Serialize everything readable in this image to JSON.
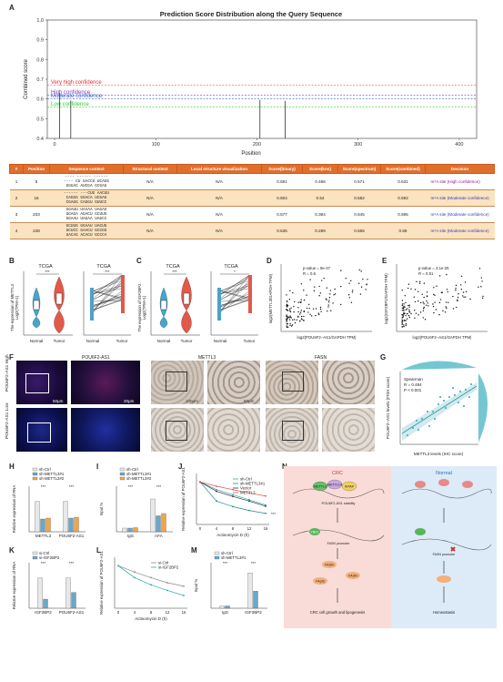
{
  "panels": {
    "A": "A",
    "B": "B",
    "C": "C",
    "D": "D",
    "E": "E",
    "F": "F",
    "G": "G",
    "H": "H",
    "I": "I",
    "J": "J",
    "K": "K",
    "L": "L",
    "M": "M",
    "N": "N"
  },
  "panelA": {
    "title": "Prediction Score Distribution along the Query Sequence",
    "ylabel": "Combined score",
    "xlabel": "Position",
    "lines": {
      "very_high": "Very high confidence",
      "high": "High confidence",
      "moderate": "Moderate confidence",
      "low": "Low confidence"
    }
  },
  "table": {
    "headers": [
      "#",
      "Position",
      "Sequence context",
      "Structural context",
      "Local structure visualization",
      "Score(binary)",
      "Score(knn)",
      "Score(spectrum)",
      "Score(combined)",
      "Decision"
    ],
    "rows": [
      {
        "n": "1",
        "pos": "5",
        "seq": [
          "----  ------  ------",
          "---- CU GACCU UCAGG",
          "GGGAC AUCGA GCGAG"
        ],
        "struct": "N/A",
        "local": "N/A",
        "binary": "0.691",
        "knn": "0.466",
        "spectrum": "0.571",
        "combined": "0.631",
        "decision": "m⁶A site (High confidence)"
      },
      {
        "n": "2",
        "pos": "16",
        "seq": [
          "------  ---CUG AACUU",
          "CAGGG GGACA UCGAG",
          "CGAGG CAGGU GUUCC"
        ],
        "struct": "N/A",
        "local": "N/A",
        "binary": "0.604",
        "knn": "0.54",
        "spectrum": "0.582",
        "combined": "0.592",
        "decision": "m⁶A site (Moderate confidence)"
      },
      {
        "n": "3",
        "pos": "203",
        "seq": [
          "GGAUU UAAAA UAGAG",
          "UGAGA AGACU GCUUG",
          "GGAAU UAGAA UAGCC"
        ],
        "struct": "N/A",
        "local": "N/A",
        "binary": "0.577",
        "knn": "0.394",
        "spectrum": "0.645",
        "combined": "0.595",
        "decision": "m⁶A site (Moderate confidence)"
      },
      {
        "n": "4",
        "pos": "228",
        "seq": [
          "GCUUG GGAAU UACUG",
          "UCUCC GAACU GCCGG",
          "UACAG ACACU GCCCA"
        ],
        "struct": "N/A",
        "local": "N/A",
        "binary": "0.635",
        "knn": "0.289",
        "spectrum": "0.565",
        "combined": "0.59",
        "decision": "m⁶A site (Moderate confidence)"
      }
    ]
  },
  "panelB": {
    "title": "TCGA",
    "ylabel": "The expression of METTL3",
    "ylabel2": "Log2(TPM+1)",
    "groups": [
      "Normal",
      "Tumor"
    ],
    "sig": "***"
  },
  "panelC": {
    "title": "TCGA",
    "ylabel": "The expression of IGF2BP2",
    "ylabel2": "Log2(TPM+1)",
    "groups": [
      "Normal",
      "Tumor"
    ],
    "sig": "***",
    "sig2": "*"
  },
  "panelD": {
    "stats": "p-value = 9e-37",
    "r": "R = 0.6",
    "xlabel": "log2(POU6F2−AS1/GAPDH TPM)",
    "ylabel": "log2(METTL3/GAPDH TPM)"
  },
  "panelE": {
    "stats": "p-value = 3.1e-25",
    "r": "R = 0.51",
    "xlabel": "log2(POU6F2−AS1/GAPDH TPM)",
    "ylabel": "log2(IGF2BP2/GAPDH TPM)"
  },
  "panelF": {
    "labels_top": [
      "POU6F2-AS1",
      "METTL3",
      "FASN"
    ],
    "row_labels": [
      "POU6F2-AS1 High",
      "POU6F2-AS1 Low"
    ],
    "scale_bars": [
      "50μm",
      "20μm",
      "100μm",
      "50μm"
    ]
  },
  "panelG": {
    "stats": [
      "Spearman",
      "R = 0.484",
      "P < 0.001"
    ],
    "xlabel": "METTL3 levels (IHC score)",
    "ylabel": "POU6F2−AS1 levels (FISH score)"
  },
  "panelH": {
    "legend": [
      "sh-Ctrl",
      "sh-METTL3#1",
      "sh-METTL3#2"
    ],
    "ylabel": "Relative expression of RNA",
    "categories": [
      "METTL3",
      "POU6F2-AS1"
    ],
    "sig": "***"
  },
  "panelI": {
    "legend": [
      "sh-Ctrl",
      "sh-METTL3#1",
      "sh-METTL3#2"
    ],
    "ylabel": "Input %",
    "categories": [
      "IgG",
      "m⁶A"
    ],
    "sig": "***"
  },
  "panelJ": {
    "legend": [
      "sh-Ctrl",
      "sh-METTL3#1",
      "Vector",
      "METTL3"
    ],
    "ylabel": "Relative expression of POU6F2-AS1",
    "xlabel": "Actinomycin D (h)",
    "sig": "***"
  },
  "panelK": {
    "legend": [
      "si-Ctrl",
      "si-IGF2BP2"
    ],
    "ylabel": "Relative expression of RNA",
    "categories": [
      "IGF2BP2",
      "POU6F2-AS1"
    ],
    "sig": "***"
  },
  "panelL": {
    "legend": [
      "si-Ctrl",
      "si-IGF2BP2"
    ],
    "ylabel": "Relative expression of POU6F2-AS1",
    "xlabel": "Actinomycin D (h)",
    "sig": "***"
  },
  "panelM": {
    "legend": [
      "sh-Ctrl",
      "sh-METTL3#1"
    ],
    "ylabel": "Input %",
    "categories": [
      "IgG",
      "IGF2BP2"
    ],
    "sig": "***"
  },
  "panelN": {
    "crc": "CRC",
    "normal": "Normal",
    "crc_outcome": "CRC cell growth and lipogenesis",
    "normal_outcome": "Homeostasis",
    "stability": "POU6F2-AS1 stability",
    "labels": [
      "METTL3",
      "METTL14",
      "WTAP",
      "YBX1",
      "FASN promoter",
      "FASN",
      "FASN",
      "FA(di)"
    ]
  },
  "chart_data": [
    {
      "type": "bar",
      "title": "Prediction Score Distribution along the Query Sequence",
      "xlabel": "Position",
      "ylabel": "Combined score",
      "x": [
        5,
        16,
        203,
        228
      ],
      "values": [
        0.631,
        0.592,
        0.595,
        0.59
      ],
      "xlim": [
        0,
        410
      ],
      "ylim": [
        0.4,
        1.0
      ],
      "thresholds": {
        "Very high confidence": 0.67,
        "High confidence": 0.62,
        "Moderate confidence": 0.6,
        "Low confidence": 0.56
      },
      "xticks": [
        0,
        100,
        200,
        300,
        400
      ],
      "yticks": [
        0.4,
        0.5,
        0.6,
        0.7,
        0.8,
        0.9,
        1.0
      ]
    },
    {
      "type": "bar",
      "panel": "H",
      "categories": [
        "METTL3",
        "POU6F2-AS1"
      ],
      "series": [
        {
          "name": "sh-Ctrl",
          "values": [
            1.0,
            1.0
          ]
        },
        {
          "name": "sh-METTL3#1",
          "values": [
            0.42,
            0.45
          ]
        },
        {
          "name": "sh-METTL3#2",
          "values": [
            0.45,
            0.48
          ]
        }
      ],
      "ylim": [
        0,
        1.5
      ],
      "colors": [
        "#e8e8e8",
        "#6aa7c9",
        "#f0a54a"
      ]
    },
    {
      "type": "bar",
      "panel": "I",
      "categories": [
        "IgG",
        "m⁶A"
      ],
      "series": [
        {
          "name": "sh-Ctrl",
          "values": [
            0.08,
            0.72
          ]
        },
        {
          "name": "sh-METTL3#1",
          "values": [
            0.08,
            0.35
          ]
        },
        {
          "name": "sh-METTL3#2",
          "values": [
            0.09,
            0.4
          ]
        }
      ],
      "ylim": [
        0,
        1.0
      ],
      "colors": [
        "#e8e8e8",
        "#6aa7c9",
        "#f0a54a"
      ]
    },
    {
      "type": "line",
      "panel": "J",
      "x": [
        0,
        4,
        8,
        12,
        16
      ],
      "series": [
        {
          "name": "sh-Ctrl",
          "values": [
            1.0,
            0.82,
            0.7,
            0.58,
            0.46
          ]
        },
        {
          "name": "sh-METTL3#1",
          "values": [
            1.0,
            0.55,
            0.42,
            0.33,
            0.26
          ]
        },
        {
          "name": "Vector",
          "values": [
            1.0,
            0.78,
            0.66,
            0.55,
            0.43
          ]
        },
        {
          "name": "METTL3",
          "values": [
            1.0,
            0.9,
            0.82,
            0.74,
            0.67
          ]
        }
      ],
      "ylim": [
        0,
        1.2
      ],
      "colors": [
        "#2aa8a8",
        "#1e8a8a",
        "#333333",
        "#e05252"
      ]
    },
    {
      "type": "bar",
      "panel": "K",
      "categories": [
        "IGF2BP2",
        "POU6F2-AS1"
      ],
      "series": [
        {
          "name": "si-Ctrl",
          "values": [
            1.0,
            1.0
          ]
        },
        {
          "name": "si-IGF2BP2",
          "values": [
            0.3,
            0.52
          ]
        }
      ],
      "ylim": [
        0,
        1.5
      ],
      "colors": [
        "#e8e8e8",
        "#6aa7c9"
      ]
    },
    {
      "type": "line",
      "panel": "L",
      "x": [
        0,
        4,
        8,
        12,
        16
      ],
      "series": [
        {
          "name": "si-Ctrl",
          "values": [
            1.0,
            0.85,
            0.72,
            0.6,
            0.52
          ]
        },
        {
          "name": "si-IGF2BP2",
          "values": [
            1.0,
            0.72,
            0.55,
            0.42,
            0.3
          ]
        }
      ],
      "ylim": [
        0,
        1.2
      ],
      "colors": [
        "#888888",
        "#2aa8a8"
      ]
    },
    {
      "type": "bar",
      "panel": "M",
      "categories": [
        "IgG",
        "IGF2BP2"
      ],
      "series": [
        {
          "name": "sh-Ctrl",
          "values": [
            0.04,
            0.62
          ]
        },
        {
          "name": "sh-METTL3#1",
          "values": [
            0.04,
            0.3
          ]
        }
      ],
      "ylim": [
        0,
        0.8
      ],
      "colors": [
        "#e8e8e8",
        "#6aa7c9"
      ]
    }
  ],
  "colors": {
    "table_header": "#e06f2c",
    "table_even": "#fbe3bf",
    "very_high": "#e03030",
    "high": "#7b3fb0",
    "moderate": "#3a5fd0",
    "low": "#33cc33",
    "teal": "#2aa8a8",
    "red": "#e05252"
  }
}
